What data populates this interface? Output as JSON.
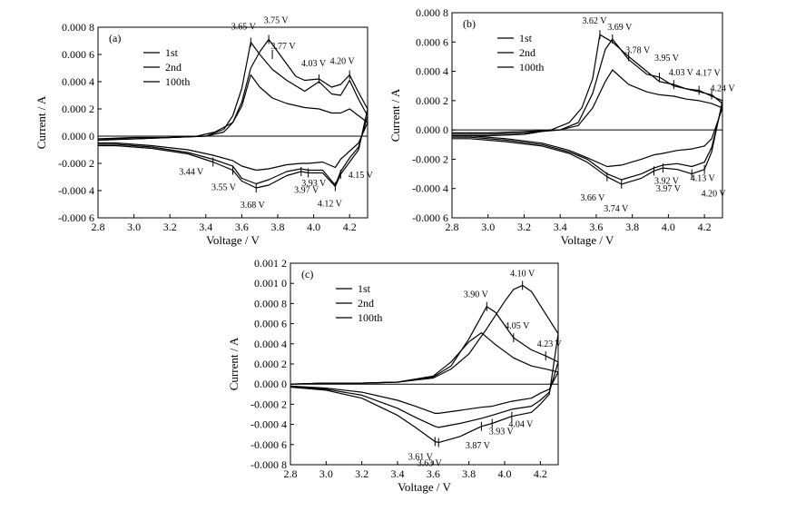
{
  "chart_data": [
    {
      "panel": "(a)",
      "type": "line",
      "xlabel": "Voltage / V",
      "ylabel": "Current / A",
      "xlim": [
        2.8,
        4.3
      ],
      "ylim": [
        -0.0006,
        0.0008
      ],
      "xticks": [
        "2.8",
        "3.0",
        "3.2",
        "3.4",
        "3.6",
        "3.8",
        "4.0",
        "4.2"
      ],
      "yticks": [
        "-0.000 6",
        "-0.000 4",
        "-0.000 2",
        "0.000 0",
        "0.000 2",
        "0.000 4",
        "0.000 6",
        "0.000 8"
      ],
      "legend": [
        "1st",
        "2nd",
        "100th"
      ],
      "legend_position": "upper-left",
      "grid": false,
      "series": [
        {
          "name": "1st",
          "x": [
            2.8,
            3.0,
            3.2,
            3.35,
            3.45,
            3.55,
            3.6,
            3.65,
            3.7,
            3.75,
            3.8,
            3.9,
            3.95,
            4.03,
            4.1,
            4.15,
            4.2,
            4.25,
            4.3,
            4.25,
            4.2,
            4.15,
            4.12,
            4.05,
            3.97,
            3.93,
            3.85,
            3.75,
            3.68,
            3.6,
            3.55,
            3.44,
            3.3,
            3.1,
            2.9,
            2.8
          ],
          "y": [
            -3e-05,
            -2e-05,
            -1e-05,
            0.0,
            3e-05,
            0.0001,
            0.00025,
            0.0005,
            0.00062,
            0.00071,
            0.00062,
            0.00044,
            0.00041,
            0.00042,
            0.00036,
            0.00038,
            0.00045,
            0.00032,
            0.0002,
            -0.0001,
            -0.00019,
            -0.00028,
            -0.00037,
            -0.00027,
            -0.00027,
            -0.00026,
            -0.00029,
            -0.00036,
            -0.00038,
            -0.00033,
            -0.00025,
            -0.00019,
            -0.00013,
            -9e-05,
            -7e-05,
            -7e-05
          ]
        },
        {
          "name": "2nd",
          "x": [
            2.8,
            3.0,
            3.2,
            3.4,
            3.5,
            3.55,
            3.6,
            3.65,
            3.7,
            3.77,
            3.85,
            3.95,
            4.03,
            4.1,
            4.15,
            4.2,
            4.25,
            4.3,
            4.25,
            4.2,
            4.15,
            4.12,
            4.05,
            3.97,
            3.93,
            3.85,
            3.75,
            3.68,
            3.6,
            3.55,
            3.44,
            3.3,
            3.1,
            2.9,
            2.8
          ],
          "y": [
            -2e-05,
            -2e-05,
            -1e-05,
            0.0,
            5e-05,
            0.00015,
            0.00035,
            0.00069,
            0.0006,
            0.00049,
            0.00041,
            0.00033,
            0.0004,
            0.00031,
            0.0003,
            0.00041,
            0.00027,
            0.00015,
            -8e-05,
            -0.00016,
            -0.00026,
            -0.00036,
            -0.00025,
            -0.00025,
            -0.00024,
            -0.00026,
            -0.00032,
            -0.00035,
            -0.00031,
            -0.00022,
            -0.00017,
            -0.00012,
            -8e-05,
            -6e-05,
            -6e-05
          ]
        },
        {
          "name": "100th",
          "x": [
            2.8,
            3.0,
            3.2,
            3.4,
            3.5,
            3.55,
            3.6,
            3.65,
            3.7,
            3.77,
            3.85,
            3.95,
            4.03,
            4.1,
            4.15,
            4.2,
            4.25,
            4.3,
            4.25,
            4.2,
            4.15,
            4.12,
            4.05,
            3.97,
            3.93,
            3.85,
            3.75,
            3.68,
            3.6,
            3.55,
            3.44,
            3.3,
            3.1,
            2.9,
            2.8
          ],
          "y": [
            -2e-05,
            -1e-05,
            -1e-05,
            0.0,
            3e-05,
            0.0001,
            0.00022,
            0.00045,
            0.00036,
            0.00028,
            0.00024,
            0.00021,
            0.0002,
            0.00017,
            0.00017,
            0.0002,
            0.00015,
            0.0001,
            -5e-05,
            -0.00011,
            -0.00017,
            -0.00023,
            -0.00019,
            -0.0002,
            -0.0002,
            -0.00021,
            -0.00024,
            -0.00025,
            -0.00022,
            -0.00018,
            -0.00014,
            -0.0001,
            -7e-05,
            -5e-05,
            -5e-05
          ]
        }
      ],
      "annotations": [
        {
          "text": "3.65 V",
          "x": 3.65,
          "y": 0.00069
        },
        {
          "text": "3.75 V",
          "x": 3.75,
          "y": 0.00071
        },
        {
          "text": "3.77 V",
          "x": 3.77,
          "y": 0.0006
        },
        {
          "text": "4.03 V",
          "x": 4.03,
          "y": 0.00042
        },
        {
          "text": "4.20 V",
          "x": 4.2,
          "y": 0.00045
        },
        {
          "text": "3.44 V",
          "x": 3.44,
          "y": -0.00019
        },
        {
          "text": "3.55 V",
          "x": 3.55,
          "y": -0.00025
        },
        {
          "text": "3.68 V",
          "x": 3.68,
          "y": -0.00038
        },
        {
          "text": "3.93 V",
          "x": 3.93,
          "y": -0.00026
        },
        {
          "text": "3.97 V",
          "x": 3.97,
          "y": -0.00027
        },
        {
          "text": "4.12 V",
          "x": 4.12,
          "y": -0.00037
        },
        {
          "text": "4.15 V",
          "x": 4.15,
          "y": -0.00028
        }
      ]
    },
    {
      "panel": "(b)",
      "type": "line",
      "xlabel": "Voltage / V",
      "ylabel": "Current / A",
      "xlim": [
        2.8,
        4.3
      ],
      "ylim": [
        -0.0006,
        0.0008
      ],
      "xticks": [
        "2.8",
        "3.0",
        "3.2",
        "3.4",
        "3.6",
        "3.8",
        "4.0",
        "4.2"
      ],
      "yticks": [
        "-0.000 6",
        "-0.000 4",
        "-0.000 2",
        "0.000 0",
        "0.000 2",
        "0.000 4",
        "0.000 6",
        "0.000 8"
      ],
      "legend": [
        "1st",
        "2nd",
        "100th"
      ],
      "legend_position": "upper-left",
      "grid": false,
      "series": [
        {
          "name": "1st",
          "x": [
            2.8,
            3.0,
            3.2,
            3.35,
            3.45,
            3.52,
            3.58,
            3.62,
            3.69,
            3.78,
            3.88,
            3.95,
            4.03,
            4.1,
            4.17,
            4.24,
            4.3,
            4.24,
            4.2,
            4.13,
            4.05,
            3.97,
            3.92,
            3.85,
            3.74,
            3.66,
            3.55,
            3.45,
            3.3,
            3.1,
            2.9,
            2.8
          ],
          "y": [
            -4e-05,
            -4e-05,
            -3e-05,
            0.0,
            5e-05,
            0.00015,
            0.00035,
            0.00065,
            0.0006,
            0.0005,
            0.0004,
            0.00033,
            0.00031,
            0.00028,
            0.00027,
            0.00023,
            0.0002,
            -0.00015,
            -0.00027,
            -0.0003,
            -0.00027,
            -0.00026,
            -0.00028,
            -0.00033,
            -0.00037,
            -0.00032,
            -0.00022,
            -0.00016,
            -0.00011,
            -8e-05,
            -6e-05,
            -6e-05
          ]
        },
        {
          "name": "2nd",
          "x": [
            2.8,
            3.0,
            3.2,
            3.4,
            3.5,
            3.58,
            3.65,
            3.69,
            3.78,
            3.88,
            3.95,
            4.03,
            4.1,
            4.17,
            4.24,
            4.3,
            4.24,
            4.2,
            4.13,
            4.05,
            3.97,
            3.92,
            3.85,
            3.74,
            3.66,
            3.55,
            3.45,
            3.3,
            3.1,
            2.9,
            2.8
          ],
          "y": [
            -3e-05,
            -3e-05,
            -2e-05,
            0.0,
            5e-05,
            0.00025,
            0.00055,
            0.00062,
            0.00048,
            0.00038,
            0.00036,
            0.0003,
            0.00028,
            0.00026,
            0.00024,
            0.00018,
            -0.00012,
            -0.00022,
            -0.00025,
            -0.00023,
            -0.00024,
            -0.00026,
            -0.0003,
            -0.00034,
            -0.0003,
            -0.0002,
            -0.00015,
            -0.0001,
            -7e-05,
            -5e-05,
            -5e-05
          ]
        },
        {
          "name": "100th",
          "x": [
            2.8,
            3.0,
            3.2,
            3.4,
            3.5,
            3.58,
            3.65,
            3.69,
            3.78,
            3.88,
            3.95,
            4.03,
            4.1,
            4.17,
            4.24,
            4.3,
            4.24,
            4.2,
            4.13,
            4.05,
            3.97,
            3.92,
            3.85,
            3.74,
            3.66,
            3.55,
            3.45,
            3.3,
            3.1,
            2.9,
            2.8
          ],
          "y": [
            -2e-05,
            -2e-05,
            -1e-05,
            0.0,
            3e-05,
            0.00015,
            0.00033,
            0.00041,
            0.00031,
            0.00026,
            0.00024,
            0.00023,
            0.00021,
            0.0002,
            0.00018,
            0.00015,
            -6e-05,
            -0.00011,
            -0.00013,
            -0.00014,
            -0.00016,
            -0.00017,
            -0.0002,
            -0.00024,
            -0.00025,
            -0.00019,
            -0.00014,
            -9e-05,
            -6e-05,
            -4e-05,
            -4e-05
          ]
        }
      ],
      "annotations": [
        {
          "text": "3.62 V",
          "x": 3.62,
          "y": 0.00065
        },
        {
          "text": "3.69 V",
          "x": 3.69,
          "y": 0.00062
        },
        {
          "text": "3.78 V",
          "x": 3.78,
          "y": 0.0005
        },
        {
          "text": "3.95 V",
          "x": 3.95,
          "y": 0.00036
        },
        {
          "text": "4.03 V",
          "x": 4.03,
          "y": 0.00031
        },
        {
          "text": "4.17 V",
          "x": 4.17,
          "y": 0.00027
        },
        {
          "text": "4.24 V",
          "x": 4.24,
          "y": 0.00024
        },
        {
          "text": "3.66 V",
          "x": 3.66,
          "y": -0.00032
        },
        {
          "text": "3.74 V",
          "x": 3.74,
          "y": -0.00037
        },
        {
          "text": "3.92 V",
          "x": 3.92,
          "y": -0.00028
        },
        {
          "text": "3.97 V",
          "x": 3.97,
          "y": -0.00026
        },
        {
          "text": "4.13 V",
          "x": 4.13,
          "y": -0.0003
        },
        {
          "text": "4.20 V",
          "x": 4.2,
          "y": -0.00027
        }
      ]
    },
    {
      "panel": "(c)",
      "type": "line",
      "xlabel": "Voltage / V",
      "ylabel": "Current / A",
      "xlim": [
        2.8,
        4.3
      ],
      "ylim": [
        -0.0008,
        0.0012
      ],
      "xticks": [
        "2.8",
        "3.0",
        "3.2",
        "3.4",
        "3.6",
        "3.8",
        "4.0",
        "4.2"
      ],
      "yticks": [
        "-0.000 8",
        "-0.000 6",
        "-0.000 4",
        "-0.000 2",
        "0.000 0",
        "0.000 2",
        "0.000 4",
        "0.000 6",
        "0.000 8",
        "0.001 0",
        "0.001 2"
      ],
      "legend": [
        "1st",
        "2nd",
        "100th"
      ],
      "legend_position": "upper-left",
      "grid": false,
      "series": [
        {
          "name": "1st",
          "x": [
            2.8,
            3.0,
            3.2,
            3.4,
            3.6,
            3.7,
            3.8,
            3.9,
            4.0,
            4.05,
            4.1,
            4.15,
            4.2,
            4.25,
            4.3,
            4.25,
            4.2,
            4.15,
            4.04,
            3.93,
            3.87,
            3.75,
            3.63,
            3.61,
            3.5,
            3.4,
            3.2,
            3.0,
            2.8
          ],
          "y": [
            0.0,
            1e-05,
            1e-05,
            2e-05,
            6e-05,
            0.00015,
            0.0003,
            0.00055,
            0.00082,
            0.00094,
            0.00098,
            0.00092,
            0.00078,
            0.00064,
            0.0005,
            -0.0001,
            -0.0002,
            -0.00028,
            -0.00032,
            -0.00039,
            -0.00042,
            -0.00052,
            -0.00058,
            -0.00057,
            -0.00043,
            -0.00031,
            -0.00014,
            -6e-05,
            -3e-05
          ]
        },
        {
          "name": "2nd",
          "x": [
            2.8,
            3.0,
            3.2,
            3.4,
            3.6,
            3.7,
            3.8,
            3.9,
            3.95,
            4.05,
            4.15,
            4.23,
            4.3,
            4.25,
            4.2,
            4.15,
            4.04,
            3.93,
            3.87,
            3.75,
            3.63,
            3.61,
            3.5,
            3.4,
            3.2,
            3.0,
            2.8
          ],
          "y": [
            0.0,
            1e-05,
            1e-05,
            2e-05,
            7e-05,
            0.00018,
            0.00045,
            0.00077,
            0.00071,
            0.00046,
            0.00034,
            0.00028,
            0.00022,
            -8e-05,
            -0.00016,
            -0.00022,
            -0.00025,
            -0.00031,
            -0.00034,
            -0.00039,
            -0.00043,
            -0.00042,
            -0.00033,
            -0.00024,
            -0.00011,
            -5e-05,
            -2e-05
          ]
        },
        {
          "name": "100th",
          "x": [
            2.8,
            3.0,
            3.2,
            3.4,
            3.6,
            3.7,
            3.8,
            3.87,
            3.95,
            4.05,
            4.15,
            4.23,
            4.3,
            4.25,
            4.2,
            4.15,
            4.04,
            3.93,
            3.87,
            3.75,
            3.63,
            3.61,
            3.5,
            3.4,
            3.2,
            3.0,
            2.8
          ],
          "y": [
            0.0,
            1e-05,
            1e-05,
            2e-05,
            8e-05,
            0.00022,
            0.00042,
            0.00051,
            0.00039,
            0.00026,
            0.00018,
            0.00015,
            0.00012,
            -5e-05,
            -9e-05,
            -0.00014,
            -0.00017,
            -0.00022,
            -0.00023,
            -0.00026,
            -0.00029,
            -0.00029,
            -0.00022,
            -0.00016,
            -8e-05,
            -4e-05,
            -2e-05
          ]
        }
      ],
      "annotations": [
        {
          "text": "4.10 V",
          "x": 4.1,
          "y": 0.00098
        },
        {
          "text": "3.90 V",
          "x": 3.9,
          "y": 0.00077
        },
        {
          "text": "4.05 V",
          "x": 4.05,
          "y": 0.00046
        },
        {
          "text": "4.23 V",
          "x": 4.23,
          "y": 0.00028
        },
        {
          "text": "4.04 V",
          "x": 4.04,
          "y": -0.00032
        },
        {
          "text": "3.93 V",
          "x": 3.93,
          "y": -0.00039
        },
        {
          "text": "3.87 V",
          "x": 3.87,
          "y": -0.00042
        },
        {
          "text": "3.61 V",
          "x": 3.61,
          "y": -0.00057
        },
        {
          "text": "3.63 V",
          "x": 3.63,
          "y": -0.00058
        }
      ]
    }
  ]
}
